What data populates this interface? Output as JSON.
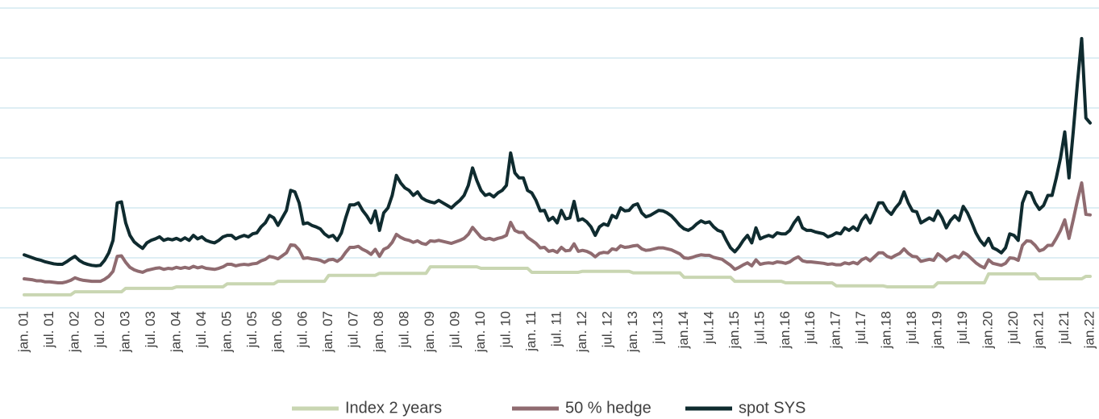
{
  "chart_data": {
    "type": "line",
    "categories": [
      "jan. 01",
      null,
      null,
      null,
      null,
      null,
      "jul. 01",
      null,
      null,
      null,
      null,
      null,
      "jan. 02",
      null,
      null,
      null,
      null,
      null,
      "jul. 02",
      null,
      null,
      null,
      null,
      null,
      "jan. 03",
      null,
      null,
      null,
      null,
      null,
      "jul. 03",
      null,
      null,
      null,
      null,
      null,
      "jan. 04",
      null,
      null,
      null,
      null,
      null,
      "jul. 04",
      null,
      null,
      null,
      null,
      null,
      "jan. 05",
      null,
      null,
      null,
      null,
      null,
      "jul. 05",
      null,
      null,
      null,
      null,
      null,
      "jan. 06",
      null,
      null,
      null,
      null,
      null,
      "jul. 06",
      null,
      null,
      null,
      null,
      null,
      "jan. 07",
      null,
      null,
      null,
      null,
      null,
      "jul. 07",
      null,
      null,
      null,
      null,
      null,
      "jan. 08",
      null,
      null,
      null,
      null,
      null,
      "jul. 08",
      null,
      null,
      null,
      null,
      null,
      "jan. 09",
      null,
      null,
      null,
      null,
      null,
      "jul. 09",
      null,
      null,
      null,
      null,
      null,
      "jan. 10",
      null,
      null,
      null,
      null,
      null,
      "jul. 10",
      null,
      null,
      null,
      null,
      null,
      "jan. 11",
      null,
      null,
      null,
      null,
      null,
      "jul. 11",
      null,
      null,
      null,
      null,
      null,
      "jan. 12",
      null,
      null,
      null,
      null,
      null,
      "jul. 12",
      null,
      null,
      null,
      null,
      null,
      "jan. 13",
      null,
      null,
      null,
      null,
      null,
      "jul.13",
      null,
      null,
      null,
      null,
      null,
      "jan.14",
      null,
      null,
      null,
      null,
      null,
      "jul.14",
      null,
      null,
      null,
      null,
      null,
      "jan.15",
      null,
      null,
      null,
      null,
      null,
      "jul.15",
      null,
      null,
      null,
      null,
      null,
      "jan.16",
      null,
      null,
      null,
      null,
      null,
      "jul.16",
      null,
      null,
      null,
      null,
      null,
      "jan.17",
      null,
      null,
      null,
      null,
      null,
      "jul.17",
      null,
      null,
      null,
      null,
      null,
      "jan.18",
      null,
      null,
      null,
      null,
      null,
      "jul.18",
      null,
      null,
      null,
      null,
      null,
      "jan.19",
      null,
      null,
      null,
      null,
      null,
      "jul.19",
      null,
      null,
      null,
      null,
      null,
      "jan.20",
      null,
      null,
      null,
      null,
      null,
      "jul.20",
      null,
      null,
      null,
      null,
      null,
      "jan.21",
      null,
      null,
      null,
      null,
      null,
      "jul.21",
      null,
      null,
      null,
      null,
      null,
      "jan.22"
    ],
    "series": [
      {
        "name": "Index 2 years",
        "color": "#c9d6b2",
        "values": [
          0.26,
          0.26,
          0.26,
          0.26,
          0.26,
          0.26,
          0.26,
          0.26,
          0.26,
          0.26,
          0.26,
          0.26,
          0.32,
          0.32,
          0.32,
          0.32,
          0.32,
          0.32,
          0.32,
          0.32,
          0.32,
          0.32,
          0.32,
          0.32,
          0.39,
          0.39,
          0.39,
          0.39,
          0.39,
          0.39,
          0.39,
          0.39,
          0.39,
          0.39,
          0.39,
          0.39,
          0.42,
          0.42,
          0.42,
          0.42,
          0.42,
          0.42,
          0.42,
          0.42,
          0.42,
          0.42,
          0.42,
          0.42,
          0.48,
          0.48,
          0.48,
          0.48,
          0.48,
          0.48,
          0.48,
          0.48,
          0.48,
          0.48,
          0.48,
          0.48,
          0.53,
          0.53,
          0.53,
          0.53,
          0.53,
          0.53,
          0.53,
          0.53,
          0.53,
          0.53,
          0.53,
          0.53,
          0.65,
          0.65,
          0.65,
          0.65,
          0.65,
          0.65,
          0.65,
          0.65,
          0.65,
          0.65,
          0.65,
          0.65,
          0.69,
          0.69,
          0.69,
          0.69,
          0.69,
          0.69,
          0.69,
          0.69,
          0.69,
          0.69,
          0.69,
          0.69,
          0.82,
          0.82,
          0.82,
          0.82,
          0.82,
          0.82,
          0.82,
          0.82,
          0.82,
          0.82,
          0.82,
          0.82,
          0.79,
          0.79,
          0.79,
          0.79,
          0.79,
          0.79,
          0.79,
          0.79,
          0.79,
          0.79,
          0.79,
          0.79,
          0.71,
          0.71,
          0.71,
          0.71,
          0.71,
          0.71,
          0.71,
          0.71,
          0.71,
          0.71,
          0.71,
          0.71,
          0.73,
          0.73,
          0.73,
          0.73,
          0.73,
          0.73,
          0.73,
          0.73,
          0.73,
          0.73,
          0.73,
          0.73,
          0.7,
          0.7,
          0.7,
          0.7,
          0.7,
          0.7,
          0.7,
          0.7,
          0.7,
          0.7,
          0.7,
          0.7,
          0.61,
          0.61,
          0.61,
          0.61,
          0.61,
          0.61,
          0.61,
          0.61,
          0.61,
          0.61,
          0.61,
          0.61,
          0.53,
          0.53,
          0.53,
          0.53,
          0.53,
          0.53,
          0.53,
          0.53,
          0.53,
          0.53,
          0.53,
          0.53,
          0.5,
          0.5,
          0.5,
          0.5,
          0.5,
          0.5,
          0.5,
          0.5,
          0.5,
          0.5,
          0.5,
          0.5,
          0.44,
          0.44,
          0.44,
          0.44,
          0.44,
          0.44,
          0.44,
          0.44,
          0.44,
          0.44,
          0.44,
          0.44,
          0.42,
          0.42,
          0.42,
          0.42,
          0.42,
          0.42,
          0.42,
          0.42,
          0.42,
          0.42,
          0.42,
          0.42,
          0.5,
          0.5,
          0.5,
          0.5,
          0.5,
          0.5,
          0.5,
          0.5,
          0.5,
          0.5,
          0.5,
          0.5,
          0.68,
          0.68,
          0.68,
          0.68,
          0.68,
          0.68,
          0.68,
          0.68,
          0.68,
          0.68,
          0.68,
          0.68,
          0.58,
          0.58,
          0.58,
          0.58,
          0.58,
          0.58,
          0.58,
          0.58,
          0.58,
          0.58,
          0.58,
          0.63,
          0.63
        ]
      },
      {
        "name": "50 % hedge",
        "color": "#8f6b70",
        "values": [
          0.58,
          0.57,
          0.56,
          0.54,
          0.54,
          0.52,
          0.52,
          0.51,
          0.5,
          0.5,
          0.52,
          0.55,
          0.6,
          0.57,
          0.55,
          0.54,
          0.53,
          0.53,
          0.53,
          0.57,
          0.63,
          0.73,
          1.03,
          1.04,
          0.91,
          0.81,
          0.76,
          0.73,
          0.71,
          0.75,
          0.77,
          0.79,
          0.8,
          0.77,
          0.79,
          0.78,
          0.81,
          0.79,
          0.81,
          0.79,
          0.83,
          0.8,
          0.82,
          0.79,
          0.78,
          0.77,
          0.79,
          0.82,
          0.87,
          0.87,
          0.84,
          0.86,
          0.87,
          0.86,
          0.88,
          0.89,
          0.94,
          0.97,
          1.03,
          1.01,
          0.98,
          1.04,
          1.1,
          1.26,
          1.25,
          1.16,
          0.99,
          1.0,
          0.98,
          0.97,
          0.95,
          0.91,
          0.96,
          0.97,
          0.93,
          0.99,
          1.11,
          1.21,
          1.21,
          1.23,
          1.17,
          1.13,
          1.07,
          1.17,
          1.03,
          1.17,
          1.21,
          1.31,
          1.47,
          1.41,
          1.37,
          1.35,
          1.31,
          1.34,
          1.29,
          1.27,
          1.34,
          1.33,
          1.35,
          1.33,
          1.31,
          1.29,
          1.32,
          1.35,
          1.39,
          1.47,
          1.61,
          1.51,
          1.41,
          1.37,
          1.39,
          1.36,
          1.39,
          1.41,
          1.45,
          1.71,
          1.55,
          1.51,
          1.51,
          1.41,
          1.35,
          1.29,
          1.2,
          1.21,
          1.13,
          1.15,
          1.11,
          1.21,
          1.14,
          1.15,
          1.28,
          1.13,
          1.15,
          1.13,
          1.09,
          1.02,
          1.09,
          1.11,
          1.1,
          1.18,
          1.16,
          1.24,
          1.21,
          1.22,
          1.24,
          1.25,
          1.18,
          1.15,
          1.16,
          1.18,
          1.2,
          1.2,
          1.18,
          1.16,
          1.12,
          1.08,
          1.0,
          0.99,
          1.01,
          1.04,
          1.06,
          1.05,
          1.05,
          1.01,
          0.99,
          0.97,
          0.91,
          0.85,
          0.77,
          0.81,
          0.86,
          0.9,
          0.84,
          0.96,
          0.87,
          0.89,
          0.9,
          0.89,
          0.92,
          0.91,
          0.89,
          0.92,
          0.98,
          1.02,
          0.94,
          0.92,
          0.92,
          0.91,
          0.9,
          0.89,
          0.87,
          0.88,
          0.86,
          0.86,
          0.9,
          0.88,
          0.91,
          0.88,
          0.96,
          1.0,
          0.94,
          1.02,
          1.1,
          1.1,
          1.03,
          1.0,
          1.05,
          1.09,
          1.18,
          1.09,
          1.03,
          1.02,
          0.93,
          0.95,
          0.97,
          0.95,
          1.08,
          1.02,
          0.94,
          1.0,
          1.04,
          1.0,
          1.11,
          1.06,
          0.98,
          0.9,
          0.84,
          0.8,
          0.96,
          0.89,
          0.87,
          0.85,
          0.89,
          1.0,
          0.99,
          0.95,
          1.25,
          1.34,
          1.33,
          1.25,
          1.14,
          1.17,
          1.25,
          1.25,
          1.39,
          1.55,
          1.76,
          1.39,
          1.76,
          2.15,
          2.5,
          1.87,
          1.86
        ]
      },
      {
        "name": "spot SYS",
        "color": "#0f2b2f",
        "values": [
          1.06,
          1.03,
          1.0,
          0.97,
          0.95,
          0.92,
          0.9,
          0.88,
          0.87,
          0.87,
          0.92,
          0.98,
          1.03,
          0.95,
          0.9,
          0.87,
          0.85,
          0.84,
          0.85,
          0.95,
          1.1,
          1.35,
          2.1,
          2.12,
          1.7,
          1.45,
          1.32,
          1.25,
          1.19,
          1.3,
          1.35,
          1.38,
          1.42,
          1.35,
          1.38,
          1.36,
          1.39,
          1.35,
          1.4,
          1.35,
          1.45,
          1.38,
          1.42,
          1.35,
          1.32,
          1.3,
          1.35,
          1.42,
          1.45,
          1.45,
          1.38,
          1.42,
          1.45,
          1.42,
          1.48,
          1.5,
          1.62,
          1.7,
          1.85,
          1.8,
          1.65,
          1.8,
          1.95,
          2.35,
          2.32,
          2.1,
          1.68,
          1.7,
          1.65,
          1.62,
          1.58,
          1.48,
          1.42,
          1.45,
          1.35,
          1.5,
          1.8,
          2.06,
          2.06,
          2.1,
          1.95,
          1.84,
          1.7,
          1.94,
          1.55,
          1.9,
          2.0,
          2.25,
          2.65,
          2.5,
          2.4,
          2.35,
          2.25,
          2.32,
          2.2,
          2.15,
          2.12,
          2.1,
          2.15,
          2.1,
          2.05,
          2.0,
          2.08,
          2.15,
          2.25,
          2.45,
          2.8,
          2.55,
          2.35,
          2.25,
          2.28,
          2.22,
          2.3,
          2.35,
          2.45,
          3.1,
          2.7,
          2.6,
          2.6,
          2.35,
          2.3,
          2.15,
          1.94,
          1.95,
          1.75,
          1.81,
          1.7,
          1.95,
          1.78,
          1.8,
          2.13,
          1.75,
          1.78,
          1.72,
          1.62,
          1.45,
          1.62,
          1.68,
          1.65,
          1.85,
          1.8,
          2.0,
          1.94,
          1.95,
          2.05,
          2.08,
          1.9,
          1.82,
          1.85,
          1.9,
          1.95,
          1.94,
          1.9,
          1.84,
          1.75,
          1.65,
          1.58,
          1.55,
          1.6,
          1.68,
          1.74,
          1.7,
          1.72,
          1.62,
          1.55,
          1.52,
          1.35,
          1.2,
          1.12,
          1.22,
          1.35,
          1.45,
          1.3,
          1.6,
          1.38,
          1.42,
          1.45,
          1.42,
          1.5,
          1.48,
          1.48,
          1.55,
          1.7,
          1.81,
          1.6,
          1.55,
          1.55,
          1.52,
          1.5,
          1.48,
          1.42,
          1.45,
          1.5,
          1.48,
          1.6,
          1.55,
          1.62,
          1.55,
          1.75,
          1.85,
          1.7,
          1.9,
          2.1,
          2.1,
          1.95,
          1.87,
          2.0,
          2.1,
          2.32,
          2.1,
          1.94,
          1.92,
          1.7,
          1.75,
          1.8,
          1.75,
          1.94,
          1.8,
          1.6,
          1.75,
          1.84,
          1.75,
          2.03,
          1.9,
          1.71,
          1.5,
          1.35,
          1.25,
          1.39,
          1.2,
          1.16,
          1.1,
          1.2,
          1.48,
          1.45,
          1.35,
          2.1,
          2.32,
          2.3,
          2.1,
          1.97,
          2.05,
          2.25,
          2.25,
          2.6,
          3.0,
          3.52,
          2.6,
          3.52,
          4.5,
          5.39,
          3.8,
          3.7
        ]
      }
    ],
    "ylim": [
      0,
      6
    ],
    "yticks": [
      0,
      1,
      2,
      3,
      4,
      5,
      6
    ],
    "grid": true,
    "legend": "bottom"
  }
}
